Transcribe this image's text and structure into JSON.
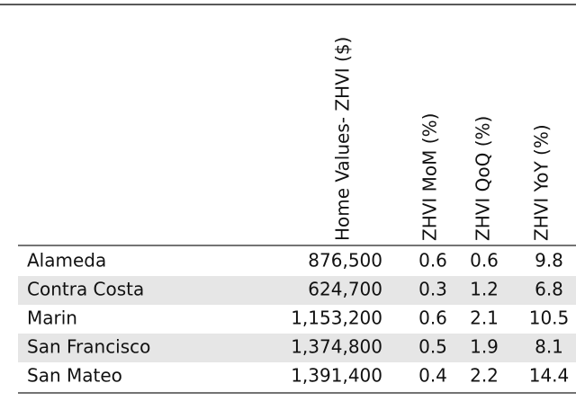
{
  "table": {
    "headers": [
      "Home Values- ZHVI ($)",
      "ZHVI MoM (%)",
      "ZHVI QoQ (%)",
      "ZHVI YoY (%)"
    ],
    "rows": [
      [
        "Alameda",
        "876,500",
        "0.6",
        "0.6",
        "9.8"
      ],
      [
        "Contra Costa",
        "624,700",
        "0.3",
        "1.2",
        "6.8"
      ],
      [
        "Marin",
        "1,153,200",
        "0.6",
        "2.1",
        "10.5"
      ],
      [
        "San Francisco",
        "1,374,800",
        "0.5",
        "1.9",
        "8.1"
      ],
      [
        "San Mateo",
        "1,391,400",
        "0.4",
        "2.2",
        "14.4"
      ]
    ]
  }
}
